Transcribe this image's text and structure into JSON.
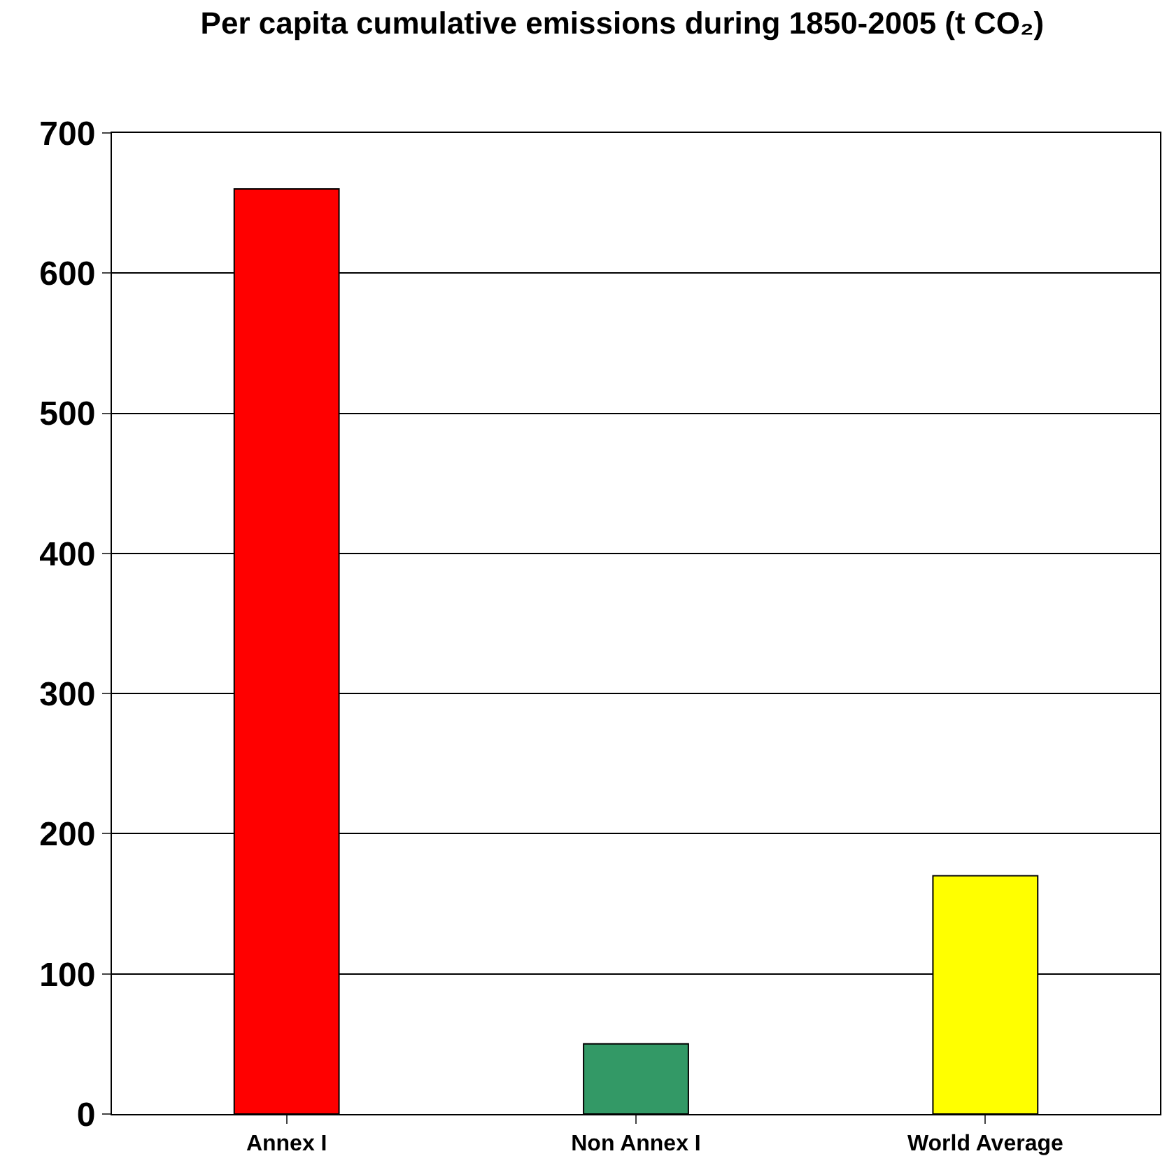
{
  "chart_data": {
    "type": "bar",
    "title": "Per capita cumulative emissions during 1850-2005 (t CO₂)",
    "categories": [
      "Annex I",
      "Non Annex I",
      "World Average"
    ],
    "values": [
      660,
      50,
      170
    ],
    "colors": [
      "#ff0000",
      "#339966",
      "#ffff00"
    ],
    "ylim": [
      0,
      700
    ],
    "yticks": [
      0,
      100,
      200,
      300,
      400,
      500,
      600,
      700
    ],
    "grid": "y"
  }
}
